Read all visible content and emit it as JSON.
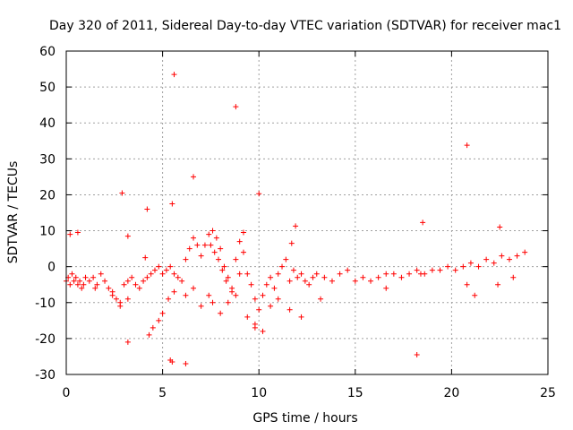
{
  "chart_data": {
    "type": "scatter",
    "title": "Day 320 of 2011, Sidereal Day-to-day VTEC variation (SDTVAR) for receiver mac1",
    "xlabel": "GPS time / hours",
    "ylabel": "SDTVAR / TECUs",
    "xlim": [
      0,
      25
    ],
    "ylim": [
      -30,
      60
    ],
    "x_ticks": [
      0,
      5,
      10,
      15,
      20,
      25
    ],
    "y_ticks": [
      -30,
      -20,
      -10,
      0,
      10,
      20,
      30,
      40,
      50,
      60
    ],
    "grid": true,
    "marker": "+",
    "color": "#ff0000",
    "series": [
      {
        "name": "SDTVAR",
        "x": [
          0.0,
          0.1,
          0.2,
          0.3,
          0.4,
          0.5,
          0.6,
          0.7,
          0.8,
          0.9,
          1.0,
          1.2,
          1.4,
          1.6,
          1.8,
          2.0,
          2.2,
          2.4,
          2.6,
          2.8,
          3.0,
          3.2,
          3.4,
          3.6,
          3.8,
          4.0,
          4.2,
          4.4,
          4.6,
          4.8,
          5.0,
          5.2,
          5.4,
          5.6,
          5.8,
          6.0,
          6.2,
          6.4,
          6.6,
          6.8,
          7.0,
          7.2,
          7.4,
          7.6,
          7.8,
          8.0,
          8.2,
          8.4,
          8.6,
          8.8,
          9.0,
          9.2,
          9.4,
          9.6,
          9.8,
          10.0,
          10.2,
          10.4,
          10.6,
          10.8,
          11.0,
          11.2,
          11.4,
          11.6,
          11.8,
          12.0,
          12.2,
          12.4,
          12.6,
          12.8,
          13.0,
          13.4,
          13.8,
          14.2,
          14.6,
          15.0,
          15.4,
          15.8,
          16.2,
          16.6,
          17.0,
          17.4,
          17.8,
          18.2,
          18.6,
          19.0,
          19.4,
          19.8,
          20.2,
          20.6,
          21.0,
          21.4,
          21.8,
          22.2,
          22.6,
          23.0,
          23.4,
          23.8,
          1.5,
          2.4,
          2.8,
          3.2,
          4.3,
          4.5,
          4.8,
          5.0,
          5.3,
          5.6,
          6.2,
          6.6,
          7.0,
          7.4,
          7.6,
          8.0,
          8.4,
          8.8,
          9.4,
          9.8,
          10.2,
          10.6,
          11.0,
          11.6,
          12.2,
          13.2,
          16.6,
          18.4,
          20.8,
          21.2,
          22.4,
          23.2,
          7.5,
          7.7,
          7.9,
          8.1,
          8.3,
          8.6,
          9.0,
          5.6,
          8.8,
          2.9,
          6.6,
          10.0,
          5.5,
          9.8,
          20.8,
          4.2,
          18.5,
          22.5,
          9.2,
          0.2,
          11.9,
          0.6,
          4.1,
          3.2,
          11.7,
          3.2,
          6.2,
          18.2,
          5.4,
          5.5
        ],
        "y": [
          -4,
          -3,
          -5,
          -2,
          -4,
          -3,
          -5,
          -4,
          -6,
          -5,
          -3,
          -4,
          -3,
          -5,
          -2,
          -4,
          -6,
          -7,
          -9,
          -10,
          -5,
          -4,
          -3,
          -5,
          -6,
          -4,
          -3,
          -2,
          -1,
          0,
          -2,
          -1,
          0,
          -2,
          -3,
          -4,
          2,
          5,
          8,
          6,
          3,
          6,
          9,
          10,
          8,
          5,
          0,
          -3,
          -6,
          2,
          7,
          4,
          -2,
          -5,
          -9,
          -12,
          -8,
          -5,
          -3,
          -6,
          -2,
          0,
          2,
          -4,
          -1,
          -3,
          -2,
          -4,
          -5,
          -3,
          -2,
          -3,
          -4,
          -2,
          -1,
          -4,
          -3,
          -4,
          -3,
          -2,
          -2,
          -3,
          -2,
          -1,
          -2,
          -1,
          -1,
          0,
          -1,
          0,
          1,
          0,
          2,
          1,
          3,
          2,
          3,
          4,
          -6,
          -8,
          -11,
          -9,
          -19,
          -17,
          -15,
          -13,
          -9,
          -7,
          -8,
          -6,
          -11,
          -8,
          -10,
          -13,
          -10,
          -8,
          -14,
          -17,
          -18,
          -11,
          -9,
          -12,
          -14,
          -9,
          -6,
          -2,
          -5,
          -8,
          -5,
          -3,
          6,
          4,
          2,
          -1,
          -4,
          -7,
          -2,
          53.5,
          44.5,
          20.5,
          25,
          20.3,
          17.5,
          -16,
          33.8,
          16,
          12.3,
          11,
          9.5,
          9,
          11.3,
          9.5,
          2.5,
          8.5,
          6.5,
          -21,
          -27,
          -24.5,
          -26,
          -26.5
        ]
      }
    ]
  }
}
